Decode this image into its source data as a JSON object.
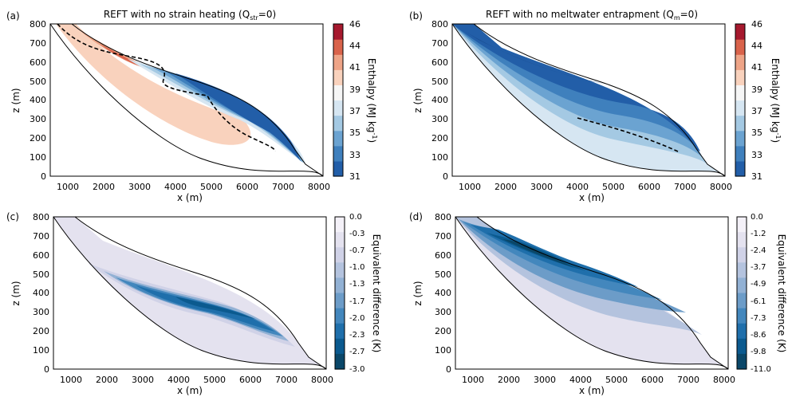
{
  "chart_data": [
    {
      "type": "contour",
      "panel_label": "(a)",
      "title": "REFT with no strain heating (Q",
      "title_sub": "str",
      "title_tail": "=0)",
      "xlabel": "x (m)",
      "ylabel": "z (m)",
      "xlim": [
        500,
        8000
      ],
      "ylim": [
        0,
        800
      ],
      "xticks": [
        1000,
        2000,
        3000,
        4000,
        5000,
        6000,
        7000,
        8000
      ],
      "yticks": [
        0,
        100,
        200,
        300,
        400,
        500,
        600,
        700,
        800
      ],
      "colorbar": {
        "label": "Enthalpy (MJ kg",
        "label_sup": "-1",
        "label_tail": ")",
        "ticks": [
          "31",
          "33",
          "35",
          "37",
          "39",
          "41",
          "44",
          "46"
        ],
        "colors": [
          "#225ea8",
          "#3f80bd",
          "#6ba3d1",
          "#a4c9e3",
          "#d6e6f2",
          "#f6f6f6",
          "#f9d2bd",
          "#eea487",
          "#d9634b",
          "#a6192e"
        ]
      },
      "dashed_line": "meltwater / temperate boundary"
    },
    {
      "type": "contour",
      "panel_label": "(b)",
      "title": "REFT with no meltwater entrapment (Q",
      "title_sub": "m",
      "title_tail": "=0)",
      "xlabel": "x (m)",
      "ylabel": "z (m)",
      "xlim": [
        500,
        8000
      ],
      "ylim": [
        0,
        800
      ],
      "xticks": [
        1000,
        2000,
        3000,
        4000,
        5000,
        6000,
        7000,
        8000
      ],
      "yticks": [
        0,
        100,
        200,
        300,
        400,
        500,
        600,
        700,
        800
      ],
      "colorbar": {
        "label": "Enthalpy (MJ kg",
        "label_sup": "-1",
        "label_tail": ")",
        "ticks": [
          "31",
          "33",
          "35",
          "37",
          "39",
          "41",
          "44",
          "46"
        ],
        "colors": [
          "#225ea8",
          "#3f80bd",
          "#6ba3d1",
          "#a4c9e3",
          "#d6e6f2",
          "#f6f6f6",
          "#f9d2bd",
          "#eea487",
          "#d9634b",
          "#a6192e"
        ]
      }
    },
    {
      "type": "contour",
      "panel_label": "(c)",
      "xlabel": "x (m)",
      "ylabel": "z (m)",
      "xlim": [
        500,
        8000
      ],
      "ylim": [
        0,
        800
      ],
      "xticks": [
        1000,
        2000,
        3000,
        4000,
        5000,
        6000,
        7000,
        8000
      ],
      "yticks": [
        0,
        100,
        200,
        300,
        400,
        500,
        600,
        700,
        800
      ],
      "colorbar": {
        "label": "Equivalent difference (K)",
        "ticks": [
          "0.0",
          "-0.3",
          "-0.7",
          "-1.0",
          "-1.3",
          "-1.7",
          "-2.0",
          "-2.3",
          "-2.7",
          "-3.0"
        ],
        "colors": [
          "#f4f1f8",
          "#e4e2ef",
          "#d0d2e7",
          "#b4c3de",
          "#92b1d4",
          "#6c9cc8",
          "#4387bd",
          "#1f6fab",
          "#0b5a8f",
          "#0a4769"
        ]
      }
    },
    {
      "type": "contour",
      "panel_label": "(d)",
      "xlabel": "x (m)",
      "ylabel": "z (m)",
      "xlim": [
        500,
        8000
      ],
      "ylim": [
        0,
        800
      ],
      "xticks": [
        1000,
        2000,
        3000,
        4000,
        5000,
        6000,
        7000,
        8000
      ],
      "yticks": [
        0,
        100,
        200,
        300,
        400,
        500,
        600,
        700,
        800
      ],
      "colorbar": {
        "label": "Equivalent difference (K)",
        "ticks": [
          "0.0",
          "-1.2",
          "-2.4",
          "-3.7",
          "-4.9",
          "-6.1",
          "-7.3",
          "-8.6",
          "-9.8",
          "-11.0"
        ],
        "colors": [
          "#f4f1f8",
          "#e4e2ef",
          "#d0d2e7",
          "#b4c3de",
          "#92b1d4",
          "#6c9cc8",
          "#4387bd",
          "#1f6fab",
          "#0b5a8f",
          "#0a4769"
        ]
      }
    }
  ]
}
